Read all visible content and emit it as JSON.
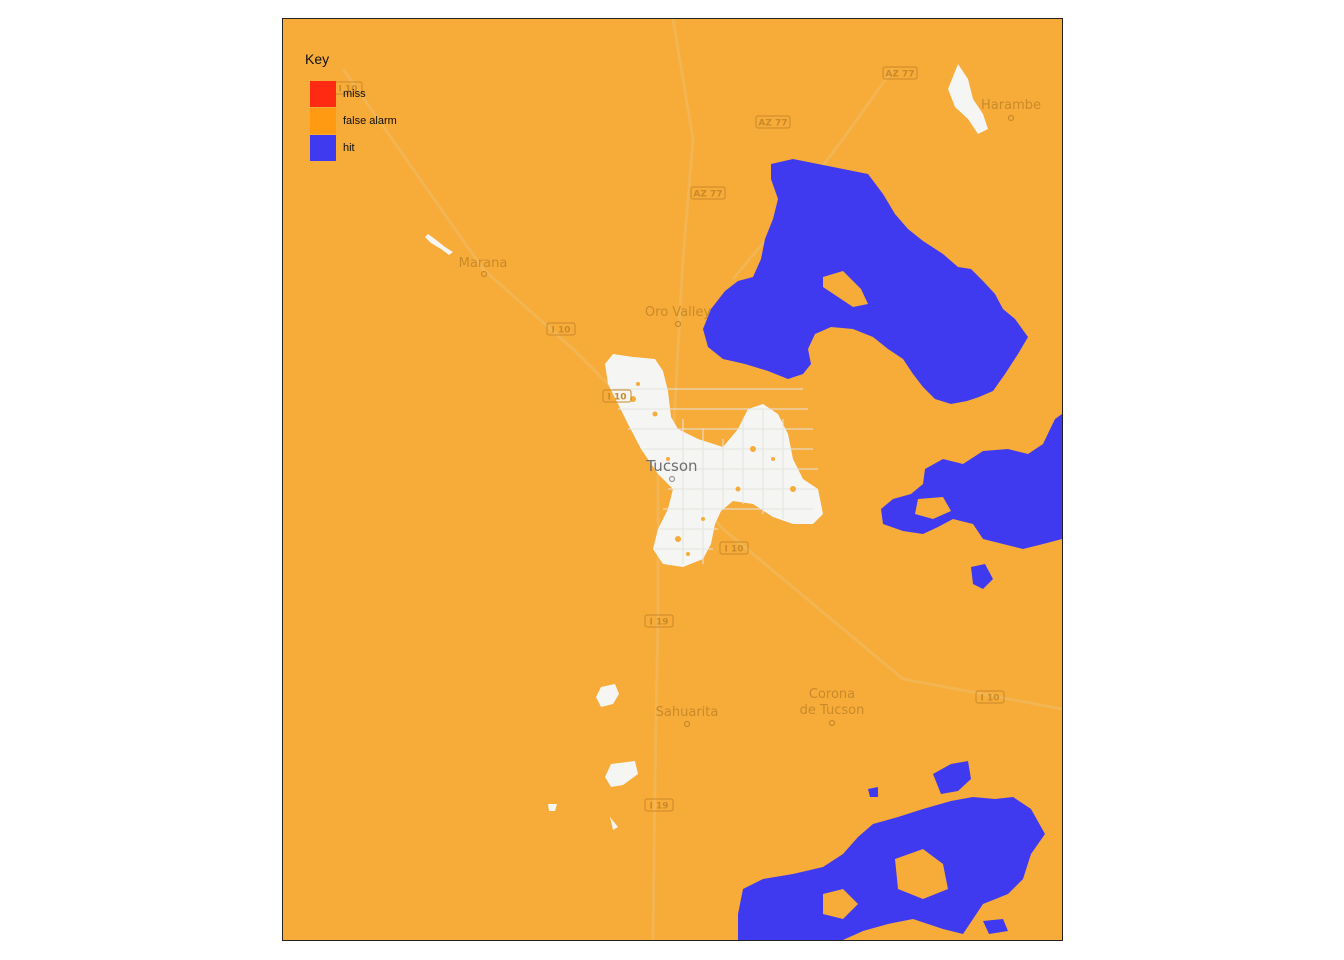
{
  "legend": {
    "title": "Key",
    "items": [
      {
        "label": "miss",
        "color": "#ff2a12"
      },
      {
        "label": "false alarm",
        "color": "#ff9a12"
      },
      {
        "label": "hit",
        "color": "#3f3af0"
      }
    ]
  },
  "map": {
    "background_color": "#f7ab38",
    "hit_color": "#3f3af0",
    "basemap_color": "#f5f5f3",
    "places": {
      "marana": "Marana",
      "oro_valley": "Oro Valley",
      "tucson": "Tucson",
      "harambe": "Harambe",
      "sahuarita": "Sahuarita",
      "corona_line1": "Corona",
      "corona_line2": "de Tucson"
    },
    "shields": {
      "i10_a": "I 10",
      "i10_b": "I 10",
      "i10_c": "I 10",
      "i10_d": "I 10",
      "i10_e": "I 10",
      "i19_a": "I 19",
      "i19_b": "I 19",
      "az77_a": "AZ 77",
      "az77_b": "AZ 77",
      "az77_c": "AZ 77"
    }
  }
}
